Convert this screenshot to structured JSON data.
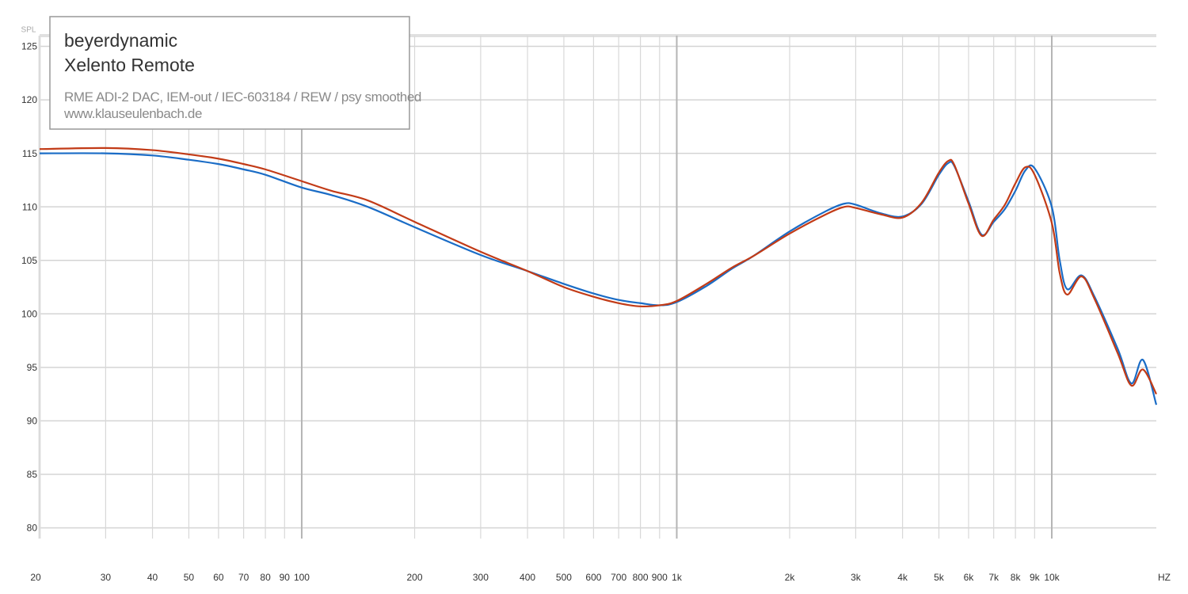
{
  "chart_data": {
    "type": "line",
    "title_lines": [
      "beyerdynamic",
      "Xelento Remote"
    ],
    "subtitle": "RME ADI-2 DAC, IEM-out / IEC-603184 / REW / psy smoothed",
    "source": "www.klauseulenbach.de",
    "ylabel": "SPL",
    "xlabel": "HZ",
    "log_x": true,
    "grid": true,
    "xlim": [
      20,
      19000
    ],
    "ylim": [
      79,
      126
    ],
    "yticks": [
      80,
      85,
      90,
      95,
      100,
      105,
      110,
      115,
      120,
      125
    ],
    "xticks": [
      20,
      30,
      40,
      50,
      60,
      70,
      80,
      90,
      100,
      200,
      300,
      400,
      500,
      600,
      700,
      800,
      900,
      {
        "value": 1000,
        "label": "1k"
      },
      {
        "value": 2000,
        "label": "2k"
      },
      {
        "value": 3000,
        "label": "3k"
      },
      {
        "value": 4000,
        "label": "4k"
      },
      {
        "value": 5000,
        "label": "5k"
      },
      {
        "value": 6000,
        "label": "6k"
      },
      {
        "value": 7000,
        "label": "7k"
      },
      {
        "value": 8000,
        "label": "8k"
      },
      {
        "value": 9000,
        "label": "9k"
      },
      {
        "value": 10000,
        "label": "10k"
      }
    ],
    "x": [
      20,
      30,
      40,
      50,
      60,
      70,
      80,
      100,
      120,
      150,
      200,
      300,
      400,
      500,
      600,
      700,
      800,
      900,
      1000,
      1200,
      1400,
      1600,
      2000,
      2500,
      2800,
      3000,
      3500,
      4000,
      4500,
      5000,
      5300,
      5500,
      6000,
      6500,
      7000,
      7500,
      8000,
      8500,
      9000,
      10000,
      10500,
      11000,
      12000,
      13000,
      15000,
      16300,
      17500,
      19000
    ],
    "series": [
      {
        "color": "#1a6cc6",
        "values": [
          115.0,
          115.0,
          114.8,
          114.4,
          114.0,
          113.5,
          113.0,
          111.8,
          111.1,
          110.0,
          108.1,
          105.5,
          104.0,
          102.8,
          101.9,
          101.3,
          101.0,
          100.8,
          101.1,
          102.6,
          104.2,
          105.4,
          107.7,
          109.6,
          110.3,
          110.2,
          109.4,
          109.1,
          110.3,
          113.0,
          114.1,
          113.8,
          110.5,
          107.4,
          108.6,
          109.8,
          111.5,
          113.4,
          113.6,
          110.0,
          105.0,
          102.3,
          103.6,
          101.6,
          96.7,
          93.5,
          95.7,
          91.5
        ]
      },
      {
        "color": "#c23b17",
        "values": [
          115.4,
          115.5,
          115.3,
          114.9,
          114.5,
          114.0,
          113.5,
          112.4,
          111.5,
          110.6,
          108.6,
          105.8,
          104.0,
          102.5,
          101.6,
          101.0,
          100.7,
          100.8,
          101.2,
          102.8,
          104.3,
          105.4,
          107.5,
          109.3,
          110.0,
          109.9,
          109.3,
          109.0,
          110.4,
          113.2,
          114.3,
          113.9,
          110.3,
          107.3,
          108.8,
          110.2,
          112.2,
          113.7,
          113.0,
          108.5,
          103.8,
          101.8,
          103.5,
          101.4,
          96.3,
          93.3,
          94.8,
          92.5
        ]
      }
    ]
  }
}
